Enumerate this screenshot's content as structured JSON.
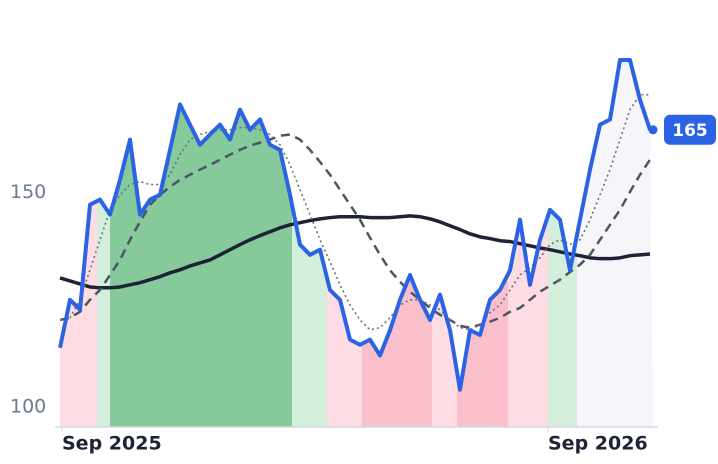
{
  "chart_data": {
    "type": "line",
    "ylim": [
      95.3,
      195
    ],
    "yticks": [
      100,
      150
    ],
    "xlim": [
      0,
      59
    ],
    "xticks": [
      {
        "value": 0.2,
        "label": "Sep 2025"
      },
      {
        "value": 48.8,
        "label": "Sep 2026"
      }
    ],
    "bands": [
      {
        "from": 0,
        "to": 3.7,
        "color": "#fddde3"
      },
      {
        "from": 3.7,
        "to": 5,
        "color": "#d3eedb"
      },
      {
        "from": 5,
        "to": 23.2,
        "color": "#86c99a"
      },
      {
        "from": 23.2,
        "to": 26.7,
        "color": "#d3eedb"
      },
      {
        "from": 26.7,
        "to": 30.2,
        "color": "#fddde3"
      },
      {
        "from": 30.2,
        "to": 37.2,
        "color": "#f9c0cb"
      },
      {
        "from": 37.2,
        "to": 39.7,
        "color": "#fddde3"
      },
      {
        "from": 39.7,
        "to": 44.8,
        "color": "#f9c0cb"
      },
      {
        "from": 44.8,
        "to": 48.8,
        "color": "#fddde3"
      },
      {
        "from": 48.8,
        "to": 51.7,
        "color": "#d3eedb"
      },
      {
        "from": 51.7,
        "to": 59.3,
        "color": "#f5f5fa"
      }
    ],
    "series": [
      {
        "color": "#1e2235",
        "style": "solid",
        "width": 3.5,
        "values": [
          130.1,
          129.4,
          128.7,
          128,
          127.8,
          127.8,
          128,
          128.5,
          129,
          129.7,
          130.4,
          131.3,
          132,
          132.9,
          133.6,
          134.3,
          135.5,
          136.7,
          137.9,
          139,
          140,
          140.9,
          141.8,
          142.5,
          143,
          143.5,
          143.9,
          144.2,
          144.4,
          144.4,
          144.4,
          144.2,
          144.2,
          144.2,
          144.4,
          144.6,
          144.4,
          143.9,
          143.2,
          142.3,
          141.4,
          140.4,
          139.7,
          139.3,
          138.8,
          138.6,
          138.1,
          137.6,
          137.1,
          136.7,
          136.2,
          135.7,
          135.3,
          134.8,
          134.6,
          134.6,
          134.8,
          135.3,
          135.5,
          135.7
        ]
      },
      {
        "color": "#4b5563",
        "style": "dashed",
        "width": 2.5,
        "values": [
          120.3,
          120.8,
          122.2,
          125,
          127.3,
          130.8,
          134.3,
          139,
          143.2,
          147.2,
          149.5,
          151.4,
          153,
          154.2,
          155.4,
          156.5,
          157.7,
          158.9,
          160,
          161,
          161.7,
          162.4,
          163.3,
          163.6,
          162.4,
          160,
          157.2,
          154.2,
          150.7,
          147.2,
          143.7,
          139.5,
          135.5,
          131.9,
          129.2,
          126.9,
          125,
          123.1,
          121.5,
          120.3,
          118.9,
          118.5,
          119.2,
          119.9,
          120.8,
          122.2,
          123.1,
          125,
          126.9,
          128.3,
          129.7,
          131.5,
          133.2,
          135.5,
          139,
          142.5,
          146,
          150.2,
          154.2,
          157.7
        ]
      },
      {
        "color": "#6b7280",
        "style": "dotted",
        "width": 1.6,
        "values": [
          120.3,
          120.8,
          125,
          132,
          139,
          146,
          149.5,
          151.9,
          152.6,
          151.9,
          151.9,
          154.2,
          158.9,
          162.4,
          163.6,
          164.3,
          164.7,
          164.7,
          165.2,
          165.2,
          164.7,
          163.6,
          161.2,
          156.5,
          150.7,
          144.9,
          139,
          133.9,
          128.5,
          123.8,
          120.3,
          118,
          118.5,
          120.8,
          123.8,
          125,
          125,
          123.8,
          122.7,
          120.3,
          118.5,
          118,
          119.2,
          122,
          123.8,
          127.3,
          130.8,
          132.5,
          134.8,
          137.9,
          139,
          137.9,
          139,
          143.7,
          149.5,
          155.4,
          162.4,
          169.4,
          172.9,
          172.9
        ]
      },
      {
        "color": "#2c63e5",
        "style": "solid",
        "width": 4,
        "price": true,
        "values": [
          113.8,
          125,
          122.7,
          147.2,
          148.4,
          144.9,
          153,
          162.4,
          144.9,
          148.4,
          149.5,
          160,
          170.6,
          165.9,
          161.2,
          163.6,
          165.9,
          162.4,
          169.4,
          164.7,
          167.1,
          161.2,
          160,
          149.5,
          137.9,
          135.5,
          136.7,
          127.3,
          125,
          115.7,
          114.5,
          115.7,
          112,
          117.9,
          125,
          130.8,
          125,
          120.3,
          126.2,
          117.9,
          104,
          117.9,
          116.8,
          125,
          127.3,
          131.9,
          143.7,
          128.5,
          139,
          146,
          143.7,
          131.9,
          143.7,
          155.4,
          165.9,
          167.1,
          181,
          181,
          171.7,
          164.7
        ],
        "value_labels": [
          null,
          null,
          null,
          null,
          null,
          null,
          null,
          null,
          null,
          null,
          null,
          null,
          null,
          null,
          null,
          null,
          null,
          null,
          null,
          null,
          null,
          null,
          null,
          null,
          null,
          null,
          null,
          null,
          null,
          null,
          null,
          null,
          null,
          null,
          null,
          null,
          null,
          null,
          null,
          null,
          null,
          null,
          null,
          null,
          null,
          null,
          null,
          null,
          null,
          null,
          null,
          null,
          null,
          null,
          null,
          null,
          null,
          null,
          null,
          "165"
        ]
      }
    ]
  }
}
